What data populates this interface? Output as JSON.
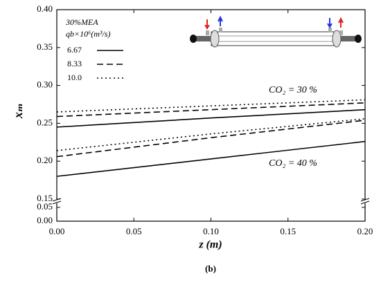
{
  "chart_data": {
    "type": "line",
    "x_label": "z (m)",
    "y_label": "xₘ",
    "caption": "(b)",
    "legend_title": "30%MEA",
    "legend_subtitle": "qb×10⁶(m³/s)",
    "x": [
      0,
      0.1,
      0.2
    ],
    "xlim": [
      0,
      0.2
    ],
    "xticks": [
      {
        "value": 0,
        "label": "0.00"
      },
      {
        "value": 0.05,
        "label": "0.05"
      },
      {
        "value": 0.1,
        "label": "0.10"
      },
      {
        "value": 0.15,
        "label": "0.15"
      },
      {
        "value": 0.2,
        "label": "0.20"
      }
    ],
    "ylim": [
      0.15,
      0.4
    ],
    "yticks": [
      {
        "value": 0.15,
        "label": "0.15"
      },
      {
        "value": 0.2,
        "label": "0.20"
      },
      {
        "value": 0.25,
        "label": "0.25"
      },
      {
        "value": 0.3,
        "label": "0.30"
      },
      {
        "value": 0.35,
        "label": "0.35"
      },
      {
        "value": 0.4,
        "label": "0.40"
      }
    ],
    "ylim_lower": [
      0,
      0.065
    ],
    "yticks_lower": [
      {
        "value": 0,
        "label": "0.00"
      },
      {
        "value": 0.05,
        "label": "0.05"
      }
    ],
    "series": [
      {
        "name": "6.67",
        "color": "#000000",
        "dash": "solid"
      },
      {
        "name": "8.33",
        "color": "#000000",
        "dash": "dashed"
      },
      {
        "name": "10.0",
        "color": "#000000",
        "dash": "dotted"
      }
    ],
    "groups": [
      {
        "annotation": "CO₂ = 30 %",
        "values": [
          [
            0.245,
            0.257,
            0.268
          ],
          [
            0.259,
            0.268,
            0.277
          ],
          [
            0.265,
            0.273,
            0.281
          ]
        ]
      },
      {
        "annotation": "CO₂ = 40 %",
        "values": [
          [
            0.18,
            0.203,
            0.226
          ],
          [
            0.206,
            0.231,
            0.254
          ],
          [
            0.214,
            0.236,
            0.256
          ]
        ]
      }
    ]
  }
}
